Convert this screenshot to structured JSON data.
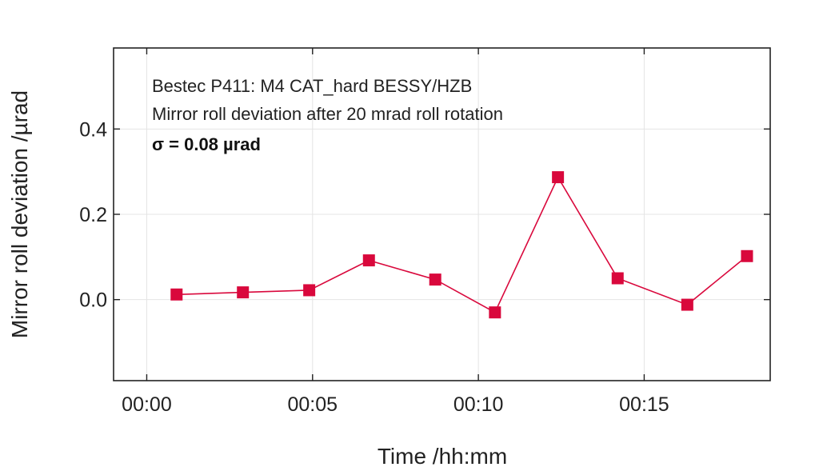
{
  "chart_data": {
    "type": "line",
    "xlabel": "Time /hh:mm",
    "ylabel": "Mirror roll deviation /µrad",
    "x_ticks": [
      "00:00",
      "00:05",
      "00:10",
      "00:15"
    ],
    "y_ticks": [
      "0.0",
      "0.2",
      "0.4"
    ],
    "xlim": [
      "-00:01",
      "00:18.8"
    ],
    "ylim": [
      -0.19,
      0.59
    ],
    "grid": true,
    "annotations": [
      "Bestec P411: M4 CAT_hard BESSY/HZB",
      "Mirror roll deviation after 20 mrad roll rotation",
      "σ = 0.08 µrad"
    ],
    "series": [
      {
        "marker": "square",
        "color": "#d9083c",
        "x": [
          "00:00.9",
          "00:02.9",
          "00:04.9",
          "00:06.7",
          "00:08.7",
          "00:10.5",
          "00:12.4",
          "00:14.2",
          "00:16.3",
          "00:18.1"
        ],
        "y": [
          0.012,
          0.017,
          0.022,
          0.092,
          0.047,
          -0.03,
          0.287,
          0.05,
          -0.012,
          0.102
        ]
      }
    ]
  }
}
